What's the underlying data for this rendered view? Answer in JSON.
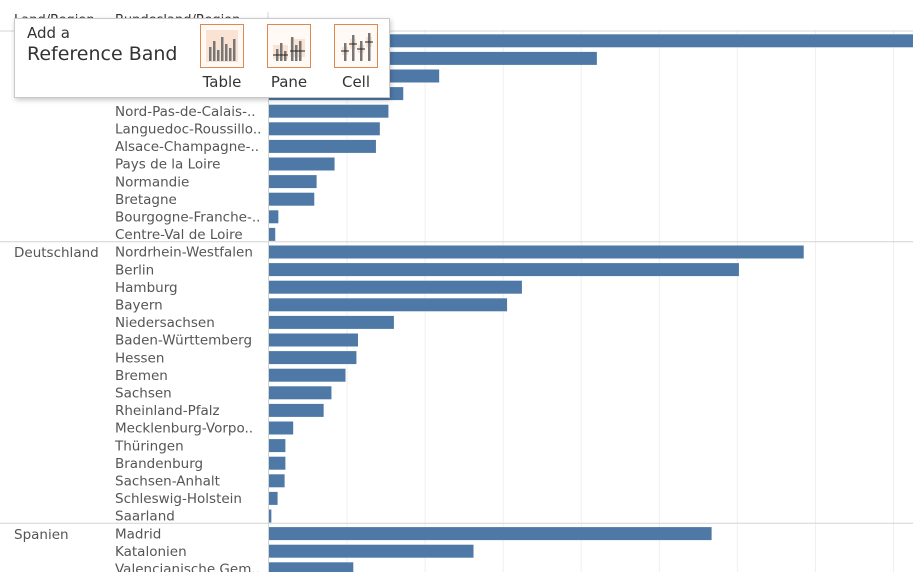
{
  "header": {
    "col1_label": "Land/Region",
    "col2_label": "Bundesland/Region"
  },
  "popup": {
    "title_line1": "Add a",
    "title_line2": "Reference Band",
    "targets": [
      {
        "label": "Table",
        "icon": "table-scope-icon"
      },
      {
        "label": "Pane",
        "icon": "pane-scope-icon"
      },
      {
        "label": "Cell",
        "icon": "cell-scope-icon"
      }
    ]
  },
  "colors": {
    "bar": "#4e79a7",
    "gridline": "#efefef",
    "separator": "#d4d4d4",
    "popup_accent": "#e0864f"
  },
  "chart_data": {
    "type": "bar",
    "orientation": "horizontal",
    "grid": true,
    "xlim": [
      0,
      8250
    ],
    "gridline_step": 1000,
    "groups": [
      {
        "country": "",
        "regions": [
          {
            "name": "",
            "value": 8250
          },
          {
            "name": "",
            "value": 4200
          },
          {
            "name": "",
            "value": 2180
          },
          {
            "name": "",
            "value": 1720
          },
          {
            "name": "Nord-Pas-de-Calais-..",
            "value": 1530
          },
          {
            "name": "Languedoc-Roussillo..",
            "value": 1420
          },
          {
            "name": "Alsace-Champagne-..",
            "value": 1370
          },
          {
            "name": "Pays de la Loire",
            "value": 840
          },
          {
            "name": "Normandie",
            "value": 610
          },
          {
            "name": "Bretagne",
            "value": 580
          },
          {
            "name": "Bourgogne-Franche-..",
            "value": 120
          },
          {
            "name": "Centre-Val de Loire",
            "value": 80
          }
        ]
      },
      {
        "country": "Deutschland",
        "regions": [
          {
            "name": "Nordrhein-Westfalen",
            "value": 6850
          },
          {
            "name": "Berlin",
            "value": 6020
          },
          {
            "name": "Hamburg",
            "value": 3240
          },
          {
            "name": "Bayern",
            "value": 3050
          },
          {
            "name": "Niedersachsen",
            "value": 1600
          },
          {
            "name": "Baden-Württemberg",
            "value": 1140
          },
          {
            "name": "Hessen",
            "value": 1120
          },
          {
            "name": "Bremen",
            "value": 980
          },
          {
            "name": "Sachsen",
            "value": 800
          },
          {
            "name": "Rheinland-Pfalz",
            "value": 700
          },
          {
            "name": "Mecklenburg-Vorpo..",
            "value": 310
          },
          {
            "name": "Thüringen",
            "value": 210
          },
          {
            "name": "Brandenburg",
            "value": 210
          },
          {
            "name": "Sachsen-Anhalt",
            "value": 200
          },
          {
            "name": "Schleswig-Holstein",
            "value": 110
          },
          {
            "name": "Saarland",
            "value": 30
          }
        ]
      },
      {
        "country": "Spanien",
        "regions": [
          {
            "name": "Madrid",
            "value": 5670
          },
          {
            "name": "Katalonien",
            "value": 2620
          },
          {
            "name": "Valencianische Gem..",
            "value": 1080
          }
        ]
      }
    ]
  }
}
